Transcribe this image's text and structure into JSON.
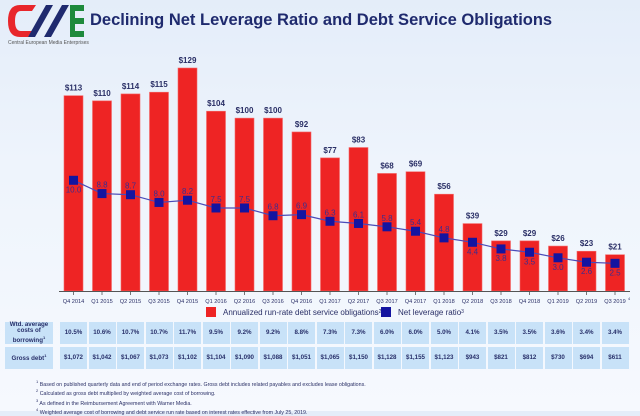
{
  "header": {
    "title": "Declining Net Leverage Ratio and Debt Service Obligations",
    "logo_tagline": "Central European Media Enterprises",
    "logo_colors": {
      "c": "#e8262b",
      "m": "#1f2a6e",
      "e": "#1e8a3c"
    }
  },
  "colors": {
    "bar": "#ee2424",
    "bar_edge": "#f46a6a",
    "marker": "#1414a0",
    "line": "#4a4ab8",
    "value_label": "#2a2f66",
    "ratio_label": "#3b2d8f",
    "cell_bg": "#c8e2f8"
  },
  "chart_data": {
    "type": "bar",
    "title": "Declining Net Leverage Ratio and Debt Service Obligations",
    "xlabel": "",
    "ylabel": "",
    "grid": false,
    "legend_position": "bottom",
    "categories": [
      "Q4 2014",
      "Q1 2015",
      "Q2 2015",
      "Q3 2015",
      "Q4 2015",
      "Q1 2016",
      "Q2 2016",
      "Q3 2016",
      "Q4 2016",
      "Q1 2017",
      "Q2 2017",
      "Q3 2017",
      "Q4 2017",
      "Q1 2018",
      "Q2 2018",
      "Q3 2018",
      "Q4 2018",
      "Q1 2019",
      "Q2 2019",
      "Q3 2019"
    ],
    "category_superscripts": [
      "",
      "",
      "",
      "",
      "",
      "",
      "",
      "",
      "",
      "",
      "",
      "",
      "",
      "",
      "",
      "",
      "",
      "",
      "",
      "4"
    ],
    "series": [
      {
        "name": "Annualized run-rate debt service obligations",
        "superscript": "2",
        "type": "bar",
        "values": [
          113,
          110,
          114,
          115,
          129,
          104,
          100,
          100,
          92,
          77,
          83,
          68,
          69,
          56,
          39,
          29,
          29,
          26,
          23,
          21
        ],
        "labels": [
          "$113",
          "$110",
          "$114",
          "$115",
          "$129",
          "$104",
          "$100",
          "$100",
          "$92",
          "$77",
          "$83",
          "$68",
          "$69",
          "$56",
          "$39",
          "$29",
          "$29",
          "$26",
          "$23",
          "$21"
        ]
      },
      {
        "name": "Net leverage ratio",
        "superscript": "3",
        "type": "line",
        "values": [
          10.0,
          8.8,
          8.7,
          8.0,
          8.2,
          7.5,
          7.5,
          6.8,
          6.9,
          6.3,
          6.1,
          5.8,
          5.4,
          4.8,
          4.4,
          3.8,
          3.5,
          3.0,
          2.6,
          2.5
        ],
        "labels": [
          "10.0",
          "8.8",
          "8.7",
          "8.0",
          "8.2",
          "7.5",
          "7.5",
          "6.8",
          "6.9",
          "6.3",
          "6.1",
          "5.8",
          "5.4",
          "4.8",
          "4.4",
          "3.8",
          "3.5",
          "3.0",
          "2.6",
          "2.5"
        ],
        "label_side": [
          "below",
          "above",
          "above",
          "above",
          "above",
          "above",
          "above",
          "above",
          "above",
          "above",
          "above",
          "above",
          "above",
          "above",
          "below",
          "below",
          "below",
          "below",
          "below",
          "below"
        ]
      }
    ],
    "bar_ylim": [
      0,
      129
    ],
    "ratio_ylim": [
      0,
      10.0
    ]
  },
  "legend": {
    "items": [
      {
        "label": "Annualized run-rate debt service obligations",
        "sup": "2"
      },
      {
        "label": "Net leverage ratio",
        "sup": "3"
      }
    ]
  },
  "table": {
    "rows": [
      {
        "label": "Wtd. average costs of borrowing",
        "sup": "1",
        "values": [
          "10.5%",
          "10.6%",
          "10.7%",
          "10.7%",
          "11.7%",
          "9.5%",
          "9.2%",
          "9.2%",
          "8.8%",
          "7.3%",
          "7.3%",
          "6.0%",
          "6.0%",
          "5.0%",
          "4.1%",
          "3.5%",
          "3.5%",
          "3.6%",
          "3.4%",
          "3.4%"
        ]
      },
      {
        "label": "Gross debt",
        "sup": "1",
        "values": [
          "$1,072",
          "$1,042",
          "$1,067",
          "$1,073",
          "$1,102",
          "$1,104",
          "$1,090",
          "$1,088",
          "$1,051",
          "$1,065",
          "$1,150",
          "$1,128",
          "$1,155",
          "$1,123",
          "$943",
          "$821",
          "$812",
          "$730",
          "$694",
          "$611"
        ]
      }
    ]
  },
  "footnotes": [
    {
      "sup": "1",
      "text": "Based on published quarterly data and end of period exchange rates. Gross debt includes related payables and excludes lease obligations."
    },
    {
      "sup": "2",
      "text": "Calculated as gross debt multiplied by weighted average cost of borrowing."
    },
    {
      "sup": "3",
      "text": "As defined in the Reimbursement Agreement with Warner Media."
    },
    {
      "sup": "4",
      "text": "Weighted average cost of borrowing and debt service run rate based on interest rates effective from July 25, 2019."
    }
  ]
}
